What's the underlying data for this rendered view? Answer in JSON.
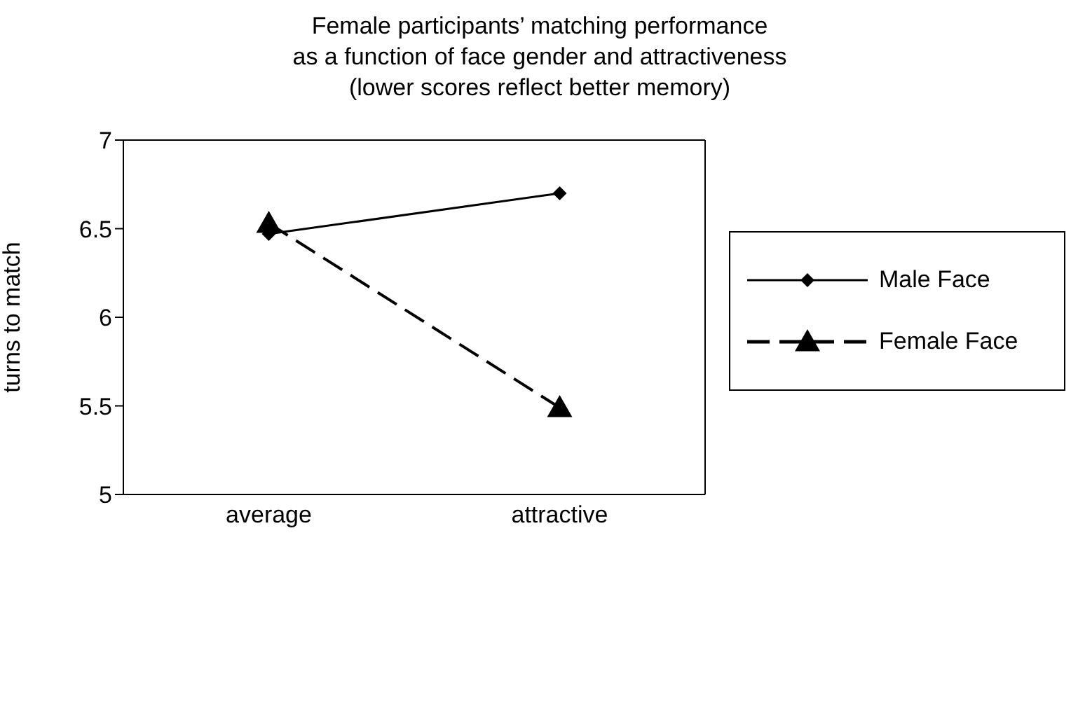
{
  "chart_data": {
    "type": "line",
    "title": "Female participants’ matching performance\nas a function of face gender and attractiveness\n(lower scores reflect better memory)",
    "ylabel": "turns to match",
    "categories": [
      "average",
      "attractive"
    ],
    "ylim": [
      5,
      7
    ],
    "yticks": [
      5,
      5.5,
      6,
      6.5,
      7
    ],
    "grid": false,
    "legend": "right",
    "series": [
      {
        "name": "Male Face",
        "color": "#000000",
        "values": [
          6.47,
          6.7
        ],
        "marker": "diamond",
        "line_style": "solid"
      },
      {
        "name": "Female Face",
        "color": "#000000",
        "values": [
          6.53,
          5.49
        ],
        "marker": "triangle",
        "line_style": "dashed"
      }
    ]
  }
}
